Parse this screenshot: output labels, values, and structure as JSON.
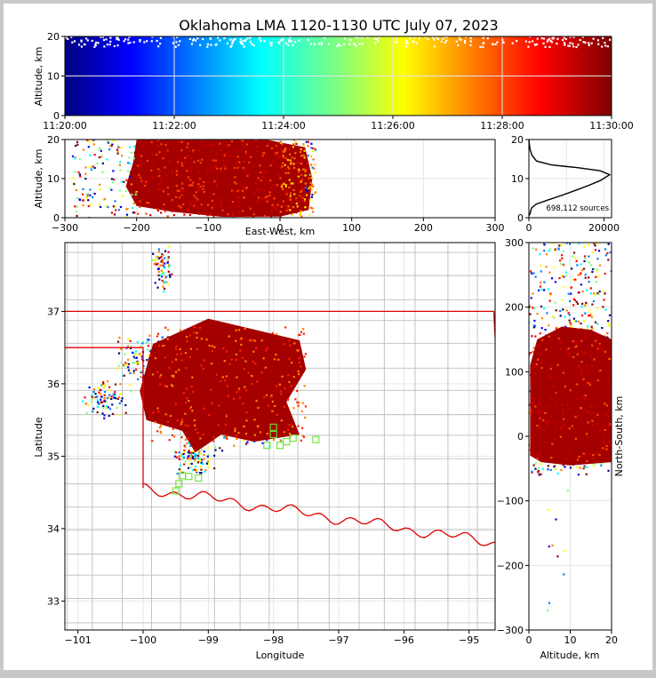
{
  "title": "Oklahoma LMA 1120-1130 UTC July 07, 2023",
  "source_count_label": "698,112 sources",
  "colors": {
    "frame": "#c8c8c8",
    "state_border": "#e00000",
    "county_lines": "#bdbdbd",
    "grid": "#e6e6e6",
    "station_marker": "#66e633",
    "dense_core": "#a40000"
  },
  "chart_data": [
    {
      "id": "time_altitude",
      "type": "scatter",
      "ylabel": "Altitude, km",
      "ylim": [
        0,
        20
      ],
      "yticks": [
        "0",
        "10",
        "20"
      ],
      "xlim": [
        "11:20:00",
        "11:30:00"
      ],
      "xticks": [
        "11:20:00",
        "11:22:00",
        "11:24:00",
        "11:26:00",
        "11:28:00",
        "11:30:00"
      ],
      "colormap": "jet (color encodes time)"
    },
    {
      "id": "ew_altitude",
      "type": "scatter",
      "xlabel": "East-West, km",
      "ylabel": "Altitude, km",
      "xlim": [
        -300,
        300
      ],
      "ylim": [
        0,
        20
      ],
      "xticks": [
        "−300",
        "−200",
        "−100",
        "0",
        "100",
        "200",
        "300"
      ],
      "yticks": [
        "0",
        "10",
        "20"
      ]
    },
    {
      "id": "altitude_histogram",
      "type": "line",
      "xlim": [
        0,
        22000
      ],
      "ylim": [
        0,
        20
      ],
      "xticks": [
        "0",
        "20000"
      ],
      "yticks": [
        "0",
        "10",
        "20"
      ],
      "x": [
        0,
        300,
        500,
        700,
        2000,
        5000,
        9000,
        13000,
        16000,
        19000,
        21500,
        19000,
        13000,
        6000,
        2000,
        800,
        300,
        100,
        0
      ],
      "y": [
        0.5,
        1,
        1.8,
        2.5,
        3.5,
        4.5,
        5.8,
        7.2,
        8.3,
        9.5,
        11.0,
        12.0,
        12.8,
        13.5,
        14.5,
        16,
        17.5,
        19,
        20
      ]
    },
    {
      "id": "plan_view",
      "type": "scatter",
      "xlabel": "Longitude",
      "ylabel": "Latitude",
      "xlim": [
        -101.2,
        -94.6
      ],
      "ylim": [
        32.6,
        37.95
      ],
      "xticks": [
        "−101",
        "−100",
        "−99",
        "−98",
        "−97",
        "−96",
        "−95"
      ],
      "yticks": [
        "33",
        "34",
        "35",
        "36",
        "37"
      ]
    },
    {
      "id": "altitude_ns",
      "type": "scatter",
      "xlabel": "Altitude, km",
      "ylabel": "North-South, km",
      "xlim": [
        0,
        20
      ],
      "ylim": [
        -300,
        300
      ],
      "xticks": [
        "0",
        "10",
        "20"
      ],
      "yticks": [
        "−300",
        "−200",
        "−100",
        "0",
        "100",
        "200",
        "300"
      ]
    }
  ]
}
